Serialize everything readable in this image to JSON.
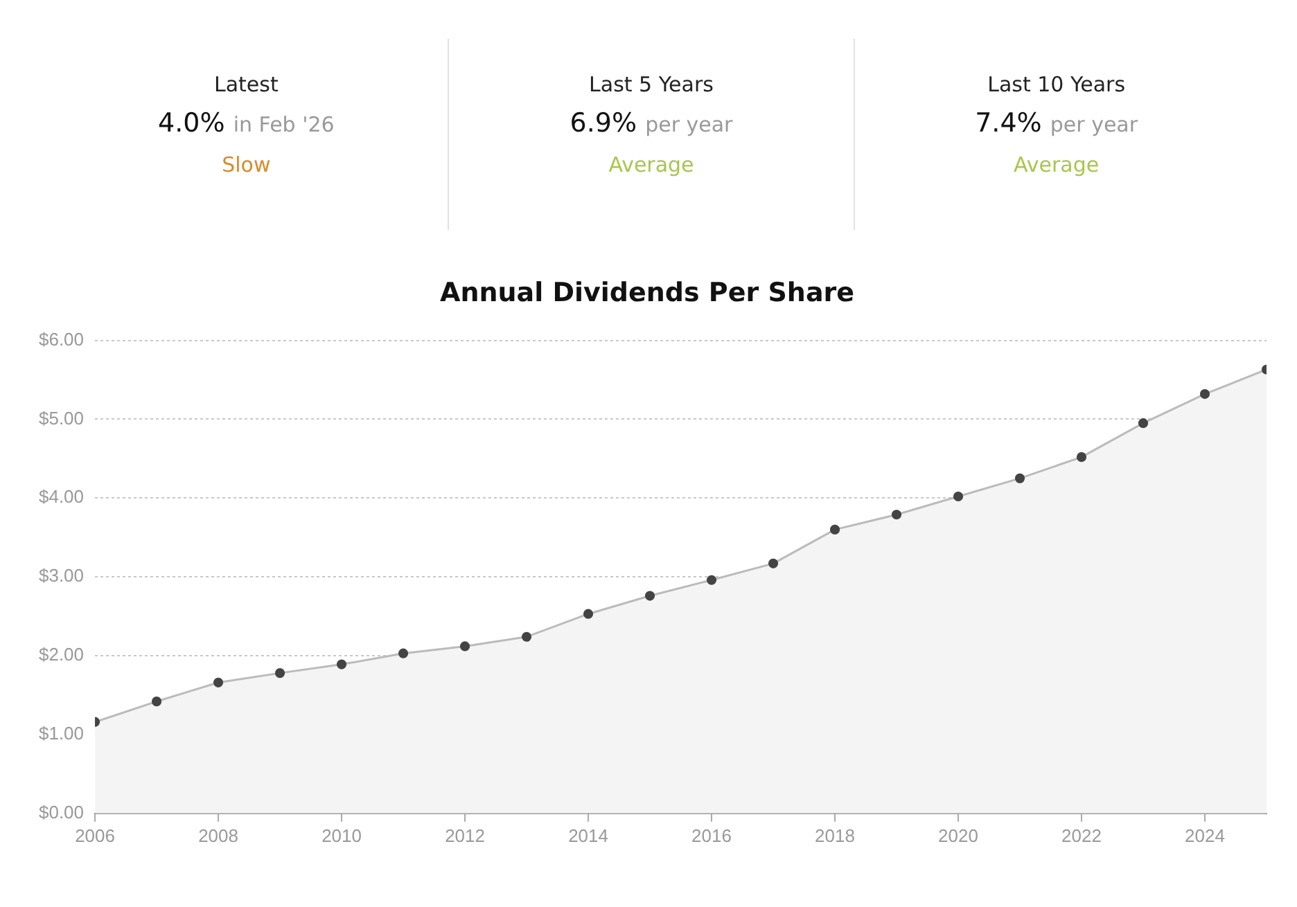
{
  "chart_data": [
    {
      "type": "other",
      "annotations": [
        "Latest",
        "4.0%",
        "in Feb '26",
        "Slow",
        "Last 5 Years",
        "6.9%",
        "per year",
        "Average",
        "Last 10 Years",
        "7.4%",
        "per year",
        "Average"
      ],
      "colors": [
        "#d98a2b",
        "#a9c54f",
        "#a9c54f"
      ]
    },
    {
      "type": "area",
      "title": "Annual Dividends Per Share",
      "x": [
        2006,
        2007,
        2008,
        2009,
        2010,
        2011,
        2012,
        2013,
        2014,
        2015,
        2016,
        2017,
        2018,
        2019,
        2020,
        2021,
        2022,
        2023,
        2024,
        2025
      ],
      "series": [
        {
          "color": "#bbbbbb",
          "values": [
            1.16,
            1.42,
            1.66,
            1.78,
            1.89,
            2.03,
            2.12,
            2.24,
            2.53,
            2.76,
            2.96,
            3.17,
            3.6,
            3.79,
            4.02,
            4.25,
            4.52,
            4.95,
            5.32,
            5.63
          ]
        }
      ],
      "xlim": [
        2006,
        2025
      ],
      "xticks": [
        2006,
        2008,
        2010,
        2012,
        2014,
        2016,
        2018,
        2020,
        2022,
        2024
      ],
      "ylim": [
        0,
        6
      ],
      "yticks": [
        {
          "value": 0,
          "label": "$0.00"
        },
        {
          "value": 1,
          "label": "$1.00"
        },
        {
          "value": 2,
          "label": "$2.00"
        },
        {
          "value": 3,
          "label": "$3.00"
        },
        {
          "value": 4,
          "label": "$4.00"
        },
        {
          "value": 5,
          "label": "$5.00"
        },
        {
          "value": 6,
          "label": "$6.00"
        }
      ],
      "grid": "y",
      "legend": false,
      "marker": "circle",
      "line_style": "solid"
    }
  ]
}
